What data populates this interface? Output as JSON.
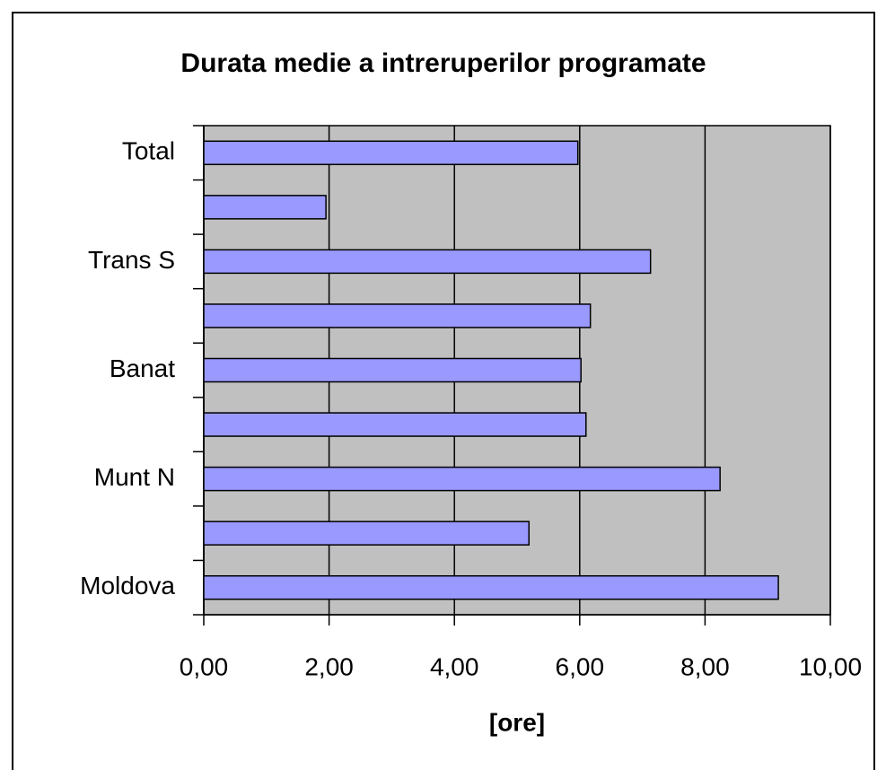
{
  "chart_data": {
    "type": "barh",
    "title": "Durata medie a intreruperilor programate",
    "xlabel": "[ore]",
    "categories": [
      "Moldova",
      null,
      "Munt N",
      null,
      "Banat",
      null,
      "Trans S",
      null,
      "Total"
    ],
    "values": [
      9.17,
      5.19,
      8.24,
      6.1,
      6.02,
      6.17,
      7.13,
      1.95,
      5.97
    ],
    "color": "#9999ff",
    "xlim": [
      0,
      10
    ],
    "xticks": [
      {
        "value": 0,
        "label": "0,00"
      },
      {
        "value": 2,
        "label": "2,00"
      },
      {
        "value": 4,
        "label": "4,00"
      },
      {
        "value": 6,
        "label": "6,00"
      },
      {
        "value": 8,
        "label": "8,00"
      },
      {
        "value": 10,
        "label": "10,00"
      }
    ],
    "grid": true
  }
}
